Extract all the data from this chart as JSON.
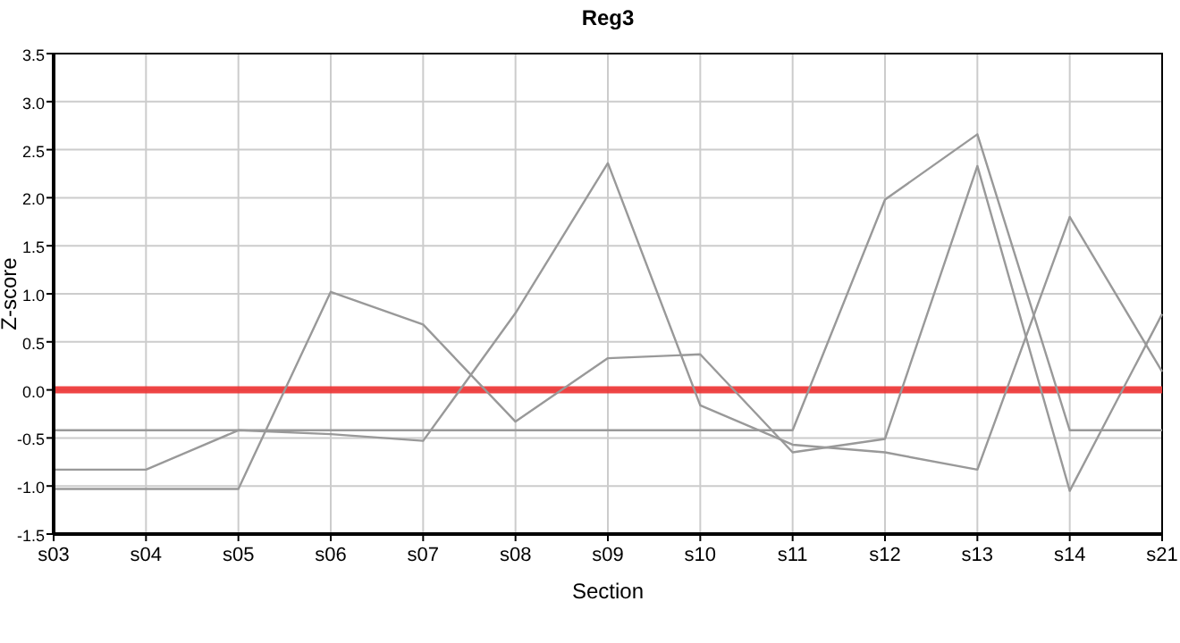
{
  "chart_data": {
    "type": "line",
    "title": "Reg3",
    "xlabel": "Section",
    "ylabel": "Z-score",
    "categories": [
      "s03",
      "s04",
      "s05",
      "s06",
      "s07",
      "s08",
      "s09",
      "s10",
      "s11",
      "s12",
      "s13",
      "s14",
      "s21"
    ],
    "series": [
      {
        "color": "#999999",
        "values": [
          -0.42,
          -0.42,
          -0.42,
          -0.42,
          -0.42,
          -0.42,
          -0.42,
          -0.42,
          -0.42,
          1.98,
          2.66,
          -0.42,
          -0.42
        ]
      },
      {
        "color": "#999999",
        "values": [
          -1.03,
          -1.03,
          -1.03,
          1.02,
          0.68,
          -0.33,
          0.33,
          0.37,
          -0.65,
          -0.51,
          2.33,
          -1.05,
          0.79
        ]
      },
      {
        "color": "#999999",
        "values": [
          -0.83,
          -0.83,
          -0.42,
          -0.46,
          -0.53,
          0.8,
          2.36,
          -0.16,
          -0.57,
          -0.65,
          -0.83,
          1.8,
          0.19
        ]
      }
    ],
    "ylim": [
      -1.5,
      3.5
    ],
    "yticks": [
      {
        "value": -1.5,
        "label": "-1.5"
      },
      {
        "value": -1,
        "label": "-1.0"
      },
      {
        "value": -0.5,
        "label": "-0.5"
      },
      {
        "value": 0,
        "label": "0.0"
      },
      {
        "value": 0.5,
        "label": "0.5"
      },
      {
        "value": 1,
        "label": "1.0"
      },
      {
        "value": 1.5,
        "label": "1.5"
      },
      {
        "value": 2,
        "label": "2.0"
      },
      {
        "value": 2.5,
        "label": "2.5"
      },
      {
        "value": 3,
        "label": "3.0"
      },
      {
        "value": 3.5,
        "label": "3.5"
      }
    ],
    "ref_lines": [
      {
        "axis": "y",
        "value": 0,
        "color": "#ee3333"
      }
    ],
    "grid": true,
    "marker": "none",
    "line_style": "solid"
  }
}
